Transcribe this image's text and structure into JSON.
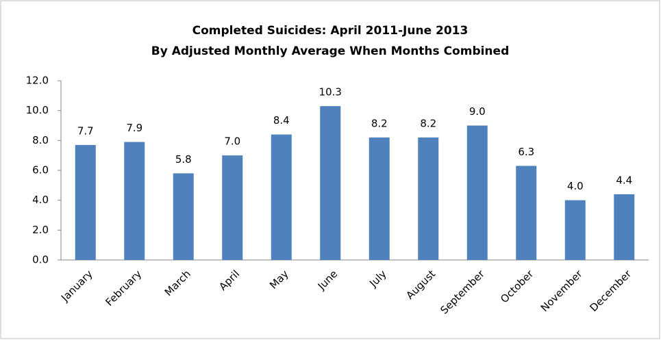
{
  "chart_data": {
    "type": "bar",
    "title": "Completed Suicides: April 2011-June 2013",
    "subtitle": "By Adjusted Monthly Average When Months Combined",
    "categories": [
      "January",
      "February",
      "March",
      "April",
      "May",
      "June",
      "July",
      "August",
      "September",
      "October",
      "November",
      "December"
    ],
    "values": [
      7.7,
      7.9,
      5.8,
      7.0,
      8.4,
      10.3,
      8.2,
      8.2,
      9.0,
      6.3,
      4.0,
      4.4
    ],
    "value_labels": [
      "7.7",
      "7.9",
      "5.8",
      "7.0",
      "8.4",
      "10.3",
      "8.2",
      "8.2",
      "9.0",
      "6.3",
      "4.0",
      "4.4"
    ],
    "color": "#4f81bd",
    "ylim": [
      0,
      12
    ],
    "yticks": [
      {
        "value": 0,
        "label": "0.0"
      },
      {
        "value": 2,
        "label": "2.0"
      },
      {
        "value": 4,
        "label": "4.0"
      },
      {
        "value": 6,
        "label": "6.0"
      },
      {
        "value": 8,
        "label": "8.0"
      },
      {
        "value": 10,
        "label": "10.0"
      },
      {
        "value": 12,
        "label": "12.0"
      }
    ],
    "grid": false
  }
}
